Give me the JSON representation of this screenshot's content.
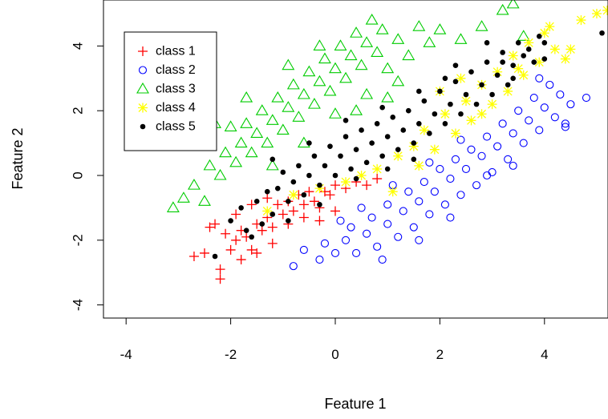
{
  "chart_data": {
    "type": "scatter",
    "title": "",
    "xlabel": "Feature 1",
    "ylabel": "Feature 2",
    "xlim": [
      -4.4,
      5.2
    ],
    "ylim": [
      -4.4,
      5.3
    ],
    "xticks": [
      -4,
      -2,
      0,
      2,
      4
    ],
    "yticks": [
      -4,
      -2,
      0,
      2,
      4
    ],
    "x_tick_labels": [
      "-4",
      "-2",
      "0",
      "2",
      "4"
    ],
    "y_tick_labels": [
      "-4",
      "-2",
      "0",
      "2",
      "4"
    ],
    "grid": false,
    "legend_position": "top-left",
    "series": [
      {
        "name": "class 1",
        "marker": "plus",
        "color": "#ff0000",
        "points": [
          [
            -2.7,
            -2.5
          ],
          [
            -2.5,
            -2.4
          ],
          [
            -2.2,
            -3.2
          ],
          [
            -2.2,
            -2.9
          ],
          [
            -2.3,
            -1.5
          ],
          [
            -2.0,
            -2.3
          ],
          [
            -1.9,
            -2.0
          ],
          [
            -1.8,
            -1.7
          ],
          [
            -1.7,
            -1.9
          ],
          [
            -1.6,
            -2.3
          ],
          [
            -1.5,
            -1.5
          ],
          [
            -1.4,
            -1.7
          ],
          [
            -1.3,
            -1.3
          ],
          [
            -1.2,
            -1.6
          ],
          [
            -1.1,
            -0.9
          ],
          [
            -1.0,
            -1.2
          ],
          [
            -0.9,
            -0.8
          ],
          [
            -0.8,
            -1.1
          ],
          [
            -0.7,
            -0.6
          ],
          [
            -0.6,
            -0.9
          ],
          [
            -0.5,
            -0.5
          ],
          [
            -0.4,
            -0.8
          ],
          [
            -0.3,
            -1.0
          ],
          [
            -0.2,
            -0.5
          ],
          [
            -0.1,
            -0.6
          ],
          [
            0.0,
            -0.3
          ],
          [
            0.2,
            -0.4
          ],
          [
            0.4,
            -0.2
          ],
          [
            0.6,
            -0.3
          ],
          [
            0.8,
            -0.1
          ],
          [
            -1.8,
            -2.6
          ],
          [
            -1.5,
            -2.4
          ],
          [
            -2.1,
            -1.8
          ],
          [
            -1.2,
            -2.1
          ],
          [
            -0.9,
            -1.5
          ],
          [
            -0.6,
            -1.3
          ],
          [
            -0.3,
            -1.4
          ],
          [
            0.0,
            -1.1
          ],
          [
            -1.6,
            -0.9
          ],
          [
            -1.3,
            -0.7
          ],
          [
            -2.4,
            -1.6
          ],
          [
            -1.9,
            -1.2
          ]
        ]
      },
      {
        "name": "class 2",
        "marker": "circle",
        "color": "#0000ff",
        "points": [
          [
            -0.8,
            -2.8
          ],
          [
            -0.6,
            -2.3
          ],
          [
            -0.3,
            -2.6
          ],
          [
            -0.2,
            -2.1
          ],
          [
            0.0,
            -2.4
          ],
          [
            0.2,
            -2.0
          ],
          [
            0.3,
            -1.6
          ],
          [
            0.4,
            -2.4
          ],
          [
            0.6,
            -1.8
          ],
          [
            0.7,
            -1.3
          ],
          [
            0.8,
            -2.2
          ],
          [
            1.0,
            -1.5
          ],
          [
            1.0,
            -0.9
          ],
          [
            1.2,
            -1.9
          ],
          [
            1.3,
            -1.1
          ],
          [
            1.4,
            -0.5
          ],
          [
            1.5,
            -1.6
          ],
          [
            1.6,
            -0.8
          ],
          [
            1.7,
            -0.2
          ],
          [
            1.8,
            -1.2
          ],
          [
            1.9,
            -0.5
          ],
          [
            2.0,
            0.2
          ],
          [
            2.1,
            -0.9
          ],
          [
            2.2,
            -0.1
          ],
          [
            2.3,
            0.5
          ],
          [
            2.4,
            -0.6
          ],
          [
            2.5,
            0.2
          ],
          [
            2.6,
            0.8
          ],
          [
            2.7,
            -0.3
          ],
          [
            2.8,
            0.6
          ],
          [
            2.9,
            1.2
          ],
          [
            3.0,
            0.1
          ],
          [
            3.1,
            0.9
          ],
          [
            3.2,
            1.6
          ],
          [
            3.3,
            0.5
          ],
          [
            3.4,
            1.3
          ],
          [
            3.5,
            2.0
          ],
          [
            3.6,
            1.0
          ],
          [
            3.7,
            1.7
          ],
          [
            3.8,
            2.4
          ],
          [
            3.9,
            1.4
          ],
          [
            4.0,
            2.1
          ],
          [
            4.1,
            2.8
          ],
          [
            4.2,
            1.8
          ],
          [
            4.3,
            2.5
          ],
          [
            4.4,
            1.6
          ],
          [
            4.5,
            2.2
          ],
          [
            4.8,
            2.4
          ],
          [
            3.9,
            3.0
          ],
          [
            4.4,
            1.5
          ],
          [
            0.5,
            -1.0
          ],
          [
            1.1,
            -0.3
          ],
          [
            1.8,
            0.4
          ],
          [
            2.4,
            1.1
          ],
          [
            2.9,
            0.0
          ],
          [
            3.4,
            0.3
          ],
          [
            2.2,
            -1.3
          ],
          [
            1.6,
            -2.0
          ],
          [
            0.9,
            -2.6
          ],
          [
            0.1,
            -1.4
          ]
        ]
      },
      {
        "name": "class 3",
        "marker": "triangle",
        "color": "#00cc00",
        "points": [
          [
            -3.1,
            -1.0
          ],
          [
            -2.9,
            -0.7
          ],
          [
            -2.7,
            -0.3
          ],
          [
            -2.5,
            -0.8
          ],
          [
            -2.4,
            0.3
          ],
          [
            -2.2,
            0.0
          ],
          [
            -2.1,
            0.7
          ],
          [
            -2.0,
            1.5
          ],
          [
            -1.9,
            0.4
          ],
          [
            -1.8,
            1.0
          ],
          [
            -1.7,
            1.6
          ],
          [
            -1.6,
            0.7
          ],
          [
            -1.5,
            1.3
          ],
          [
            -1.4,
            2.0
          ],
          [
            -1.3,
            1.0
          ],
          [
            -1.2,
            1.7
          ],
          [
            -1.1,
            2.4
          ],
          [
            -1.0,
            1.4
          ],
          [
            -0.9,
            2.1
          ],
          [
            -0.8,
            2.8
          ],
          [
            -0.7,
            1.8
          ],
          [
            -0.6,
            2.5
          ],
          [
            -0.5,
            3.2
          ],
          [
            -0.4,
            2.2
          ],
          [
            -0.3,
            2.9
          ],
          [
            -0.2,
            3.6
          ],
          [
            -0.1,
            2.6
          ],
          [
            0.0,
            3.3
          ],
          [
            0.1,
            4.0
          ],
          [
            0.2,
            3.0
          ],
          [
            0.3,
            3.7
          ],
          [
            0.4,
            4.4
          ],
          [
            0.5,
            3.4
          ],
          [
            0.6,
            4.1
          ],
          [
            0.7,
            4.8
          ],
          [
            0.8,
            3.8
          ],
          [
            0.9,
            4.5
          ],
          [
            1.0,
            3.3
          ],
          [
            1.2,
            4.2
          ],
          [
            1.4,
            3.7
          ],
          [
            1.6,
            4.6
          ],
          [
            1.8,
            4.1
          ],
          [
            2.0,
            4.5
          ],
          [
            2.4,
            4.2
          ],
          [
            2.8,
            4.6
          ],
          [
            3.2,
            5.1
          ],
          [
            3.4,
            5.3
          ],
          [
            3.6,
            4.3
          ],
          [
            -2.6,
            0.9
          ],
          [
            -1.2,
            0.3
          ],
          [
            -0.6,
            1.0
          ],
          [
            0.0,
            1.9
          ],
          [
            0.6,
            2.5
          ],
          [
            1.2,
            2.9
          ],
          [
            -2.3,
            1.6
          ],
          [
            -1.7,
            2.4
          ],
          [
            -0.9,
            3.4
          ],
          [
            -0.3,
            4.0
          ],
          [
            0.4,
            2.0
          ],
          [
            1.0,
            2.4
          ]
        ]
      },
      {
        "name": "class 4",
        "marker": "asterisk",
        "color": "#ffff00",
        "points": [
          [
            -1.3,
            -1.1
          ],
          [
            -0.8,
            -0.6
          ],
          [
            -0.3,
            -0.4
          ],
          [
            0.2,
            -0.2
          ],
          [
            0.5,
            0.0
          ],
          [
            0.8,
            0.2
          ],
          [
            1.1,
            -0.5
          ],
          [
            1.2,
            0.6
          ],
          [
            1.5,
            0.9
          ],
          [
            1.7,
            1.4
          ],
          [
            1.9,
            0.8
          ],
          [
            2.1,
            1.9
          ],
          [
            2.3,
            1.3
          ],
          [
            2.5,
            2.3
          ],
          [
            2.6,
            1.7
          ],
          [
            2.8,
            2.8
          ],
          [
            3.0,
            2.2
          ],
          [
            3.1,
            3.2
          ],
          [
            3.3,
            2.6
          ],
          [
            3.4,
            3.7
          ],
          [
            3.6,
            3.1
          ],
          [
            3.7,
            4.1
          ],
          [
            3.9,
            3.5
          ],
          [
            4.0,
            4.4
          ],
          [
            4.2,
            3.9
          ],
          [
            4.4,
            3.6
          ],
          [
            4.5,
            3.9
          ],
          [
            4.7,
            4.8
          ],
          [
            5.0,
            5.0
          ],
          [
            5.2,
            5.1
          ],
          [
            2.0,
            2.6
          ],
          [
            2.4,
            3.0
          ],
          [
            1.6,
            0.3
          ],
          [
            2.8,
            1.9
          ],
          [
            3.5,
            3.3
          ],
          [
            4.1,
            4.6
          ]
        ]
      },
      {
        "name": "class 5",
        "marker": "dot",
        "color": "#000000",
        "points": [
          [
            -2.3,
            -2.5
          ],
          [
            -2.0,
            -1.4
          ],
          [
            -1.8,
            -1.0
          ],
          [
            -1.7,
            -1.7
          ],
          [
            -1.5,
            -0.8
          ],
          [
            -1.4,
            -1.5
          ],
          [
            -1.3,
            -0.5
          ],
          [
            -1.2,
            -1.2
          ],
          [
            -1.1,
            -0.4
          ],
          [
            -1.0,
            0.1
          ],
          [
            -0.9,
            -0.8
          ],
          [
            -0.8,
            -0.2
          ],
          [
            -0.7,
            0.3
          ],
          [
            -0.6,
            -0.6
          ],
          [
            -0.5,
            0.0
          ],
          [
            -0.4,
            0.6
          ],
          [
            -0.3,
            -0.3
          ],
          [
            -0.2,
            0.3
          ],
          [
            -0.1,
            0.9
          ],
          [
            0.0,
            0.0
          ],
          [
            0.1,
            0.6
          ],
          [
            0.2,
            1.2
          ],
          [
            0.3,
            0.2
          ],
          [
            0.4,
            0.8
          ],
          [
            0.5,
            1.4
          ],
          [
            0.6,
            0.4
          ],
          [
            0.7,
            1.0
          ],
          [
            0.8,
            1.6
          ],
          [
            0.9,
            0.6
          ],
          [
            1.0,
            1.2
          ],
          [
            1.1,
            1.8
          ],
          [
            1.2,
            0.8
          ],
          [
            1.3,
            1.4
          ],
          [
            1.4,
            2.0
          ],
          [
            1.5,
            1.0
          ],
          [
            1.6,
            1.6
          ],
          [
            1.7,
            2.3
          ],
          [
            1.8,
            1.3
          ],
          [
            1.9,
            1.9
          ],
          [
            2.0,
            2.6
          ],
          [
            2.1,
            1.6
          ],
          [
            2.2,
            2.2
          ],
          [
            2.3,
            2.9
          ],
          [
            2.4,
            1.9
          ],
          [
            2.5,
            2.5
          ],
          [
            2.6,
            3.2
          ],
          [
            2.7,
            2.2
          ],
          [
            2.8,
            2.8
          ],
          [
            2.9,
            3.5
          ],
          [
            3.0,
            2.5
          ],
          [
            3.1,
            3.1
          ],
          [
            3.2,
            3.8
          ],
          [
            3.3,
            2.8
          ],
          [
            3.4,
            3.4
          ],
          [
            3.5,
            4.1
          ],
          [
            3.6,
            3.7
          ],
          [
            3.8,
            3.5
          ],
          [
            3.9,
            4.3
          ],
          [
            4.0,
            3.6
          ],
          [
            5.1,
            4.4
          ],
          [
            -1.6,
            -1.9
          ],
          [
            -0.9,
            -1.4
          ],
          [
            -0.3,
            -0.9
          ],
          [
            0.4,
            -0.1
          ],
          [
            1.0,
            0.2
          ],
          [
            1.5,
            0.5
          ],
          [
            -1.2,
            0.5
          ],
          [
            -0.5,
            1.0
          ],
          [
            0.2,
            1.7
          ],
          [
            0.9,
            2.1
          ],
          [
            1.6,
            2.6
          ],
          [
            2.3,
            3.4
          ],
          [
            3.4,
            3.0
          ],
          [
            3.7,
            3.9
          ],
          [
            4.0,
            4.1
          ],
          [
            2.9,
            4.1
          ],
          [
            3.2,
            3.5
          ],
          [
            2.1,
            3.0
          ]
        ]
      }
    ]
  }
}
